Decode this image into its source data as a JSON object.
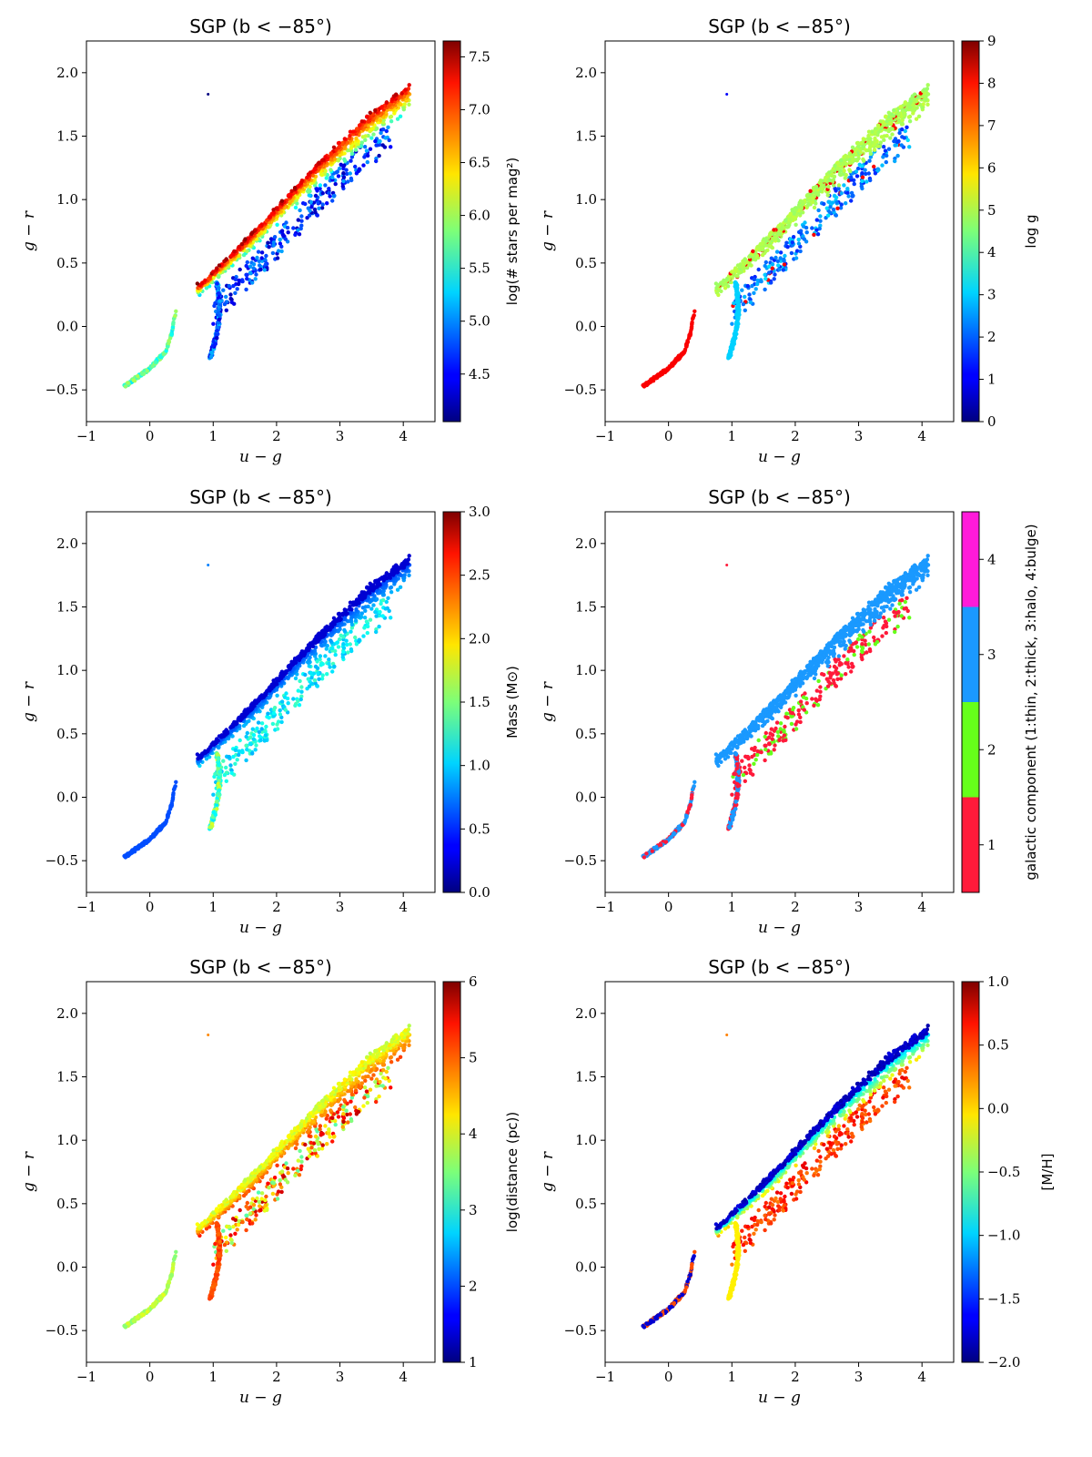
{
  "figure": {
    "panels": [
      {
        "id": "p1",
        "title": "SGP (b < −85°)",
        "xlabel": "u − g",
        "ylabel": "g − r",
        "cbar_label": "log(# stars per mag²)",
        "color_mode": "density",
        "cbar": {
          "type": "continuous",
          "range": [
            4.05,
            7.65
          ],
          "ticks": [
            "4.5",
            "5.0",
            "5.5",
            "6.0",
            "6.5",
            "7.0",
            "7.5"
          ],
          "tick_values": [
            4.5,
            5.0,
            5.5,
            6.0,
            6.5,
            7.0,
            7.5
          ]
        }
      },
      {
        "id": "p2",
        "title": "SGP (b < −85°)",
        "xlabel": "u − g",
        "ylabel": "g − r",
        "cbar_label": "log g",
        "color_mode": "logg",
        "cbar": {
          "type": "continuous",
          "range": [
            0,
            9
          ],
          "ticks": [
            "0",
            "1",
            "2",
            "3",
            "4",
            "5",
            "6",
            "7",
            "8",
            "9"
          ],
          "tick_values": [
            0,
            1,
            2,
            3,
            4,
            5,
            6,
            7,
            8,
            9
          ]
        }
      },
      {
        "id": "p3",
        "title": "SGP (b < −85°)",
        "xlabel": "u − g",
        "ylabel": "g − r",
        "cbar_label": "Mass (M⊙)",
        "color_mode": "mass",
        "cbar": {
          "type": "continuous",
          "range": [
            0,
            3
          ],
          "ticks": [
            "0.0",
            "0.5",
            "1.0",
            "1.5",
            "2.0",
            "2.5",
            "3.0"
          ],
          "tick_values": [
            0,
            0.5,
            1,
            1.5,
            2,
            2.5,
            3
          ]
        }
      },
      {
        "id": "p4",
        "title": "SGP (b < −85°)",
        "xlabel": "u − g",
        "ylabel": "g − r",
        "cbar_label": "galactic component (1:thin, 2:thick, 3:halo, 4:bulge)",
        "color_mode": "component",
        "cbar": {
          "type": "discrete",
          "range": [
            0.5,
            4.5
          ],
          "ticks": [
            "1",
            "2",
            "3",
            "4"
          ],
          "tick_values": [
            1,
            2,
            3,
            4
          ],
          "colors": [
            "#ff1a3a",
            "#66ff1a",
            "#1a99ff",
            "#ff1ad9"
          ]
        }
      },
      {
        "id": "p5",
        "title": "SGP (b < −85°)",
        "xlabel": "u − g",
        "ylabel": "g − r",
        "cbar_label": "log(distance (pc))",
        "color_mode": "distance",
        "cbar": {
          "type": "continuous",
          "range": [
            1,
            6
          ],
          "ticks": [
            "1",
            "2",
            "3",
            "4",
            "5",
            "6"
          ],
          "tick_values": [
            1,
            2,
            3,
            4,
            5,
            6
          ]
        }
      },
      {
        "id": "p6",
        "title": "SGP (b < −85°)",
        "xlabel": "u − g",
        "ylabel": "g − r",
        "cbar_label": "[M/H]",
        "color_mode": "metallicity",
        "cbar": {
          "type": "continuous",
          "range": [
            -2,
            1
          ],
          "ticks": [
            "−2.0",
            "−1.5",
            "−1.0",
            "−0.5",
            "0.0",
            "0.5",
            "1.0"
          ],
          "tick_values": [
            -2,
            -1.5,
            -1,
            -0.5,
            0,
            0.5,
            1
          ]
        }
      }
    ],
    "x_ticks": [
      "−1",
      "0",
      "1",
      "2",
      "3",
      "4"
    ],
    "x_tick_values": [
      -1,
      0,
      1,
      2,
      3,
      4
    ],
    "y_ticks": [
      "−0.5",
      "0.0",
      "0.5",
      "1.0",
      "1.5",
      "2.0"
    ],
    "y_tick_values": [
      -0.5,
      0,
      0.5,
      1,
      1.5,
      2
    ],
    "xlim": [
      -1,
      4.5
    ],
    "ylim": [
      -0.75,
      2.25
    ]
  },
  "chart_data": [
    {
      "type": "scatter",
      "panel": 1,
      "title": "SGP (b < −85°)",
      "xlabel": "u − g",
      "ylabel": "g − r",
      "xlim": [
        -1,
        4.5
      ],
      "ylim": [
        -0.75,
        2.25
      ],
      "series": [
        {
          "name": "main sequence ridge",
          "x": [
            -0.4,
            0,
            0.3,
            0.5,
            0.8,
            1.2,
            1.6,
            2.0,
            2.5,
            3.0,
            3.5,
            4.1
          ],
          "y": [
            -0.47,
            -0.32,
            -0.15,
            0.2,
            0.3,
            0.55,
            0.75,
            0.95,
            1.2,
            1.45,
            1.7,
            1.9
          ]
        },
        {
          "name": "secondary branch",
          "x": [
            0.9,
            1.0,
            1.1,
            1.0,
            1.05
          ],
          "y": [
            -0.25,
            -0.1,
            0.05,
            0.2,
            0.35
          ]
        },
        {
          "name": "outlier",
          "x": [
            0.92
          ],
          "y": [
            1.83
          ]
        }
      ],
      "colorbar": {
        "label": "log(# stars per mag²)",
        "range": [
          4.05,
          7.65
        ]
      }
    },
    {
      "type": "scatter",
      "panel": 2,
      "title": "SGP (b < −85°)",
      "colorbar": {
        "label": "log g",
        "range": [
          0,
          9
        ]
      }
    },
    {
      "type": "scatter",
      "panel": 3,
      "title": "SGP (b < −85°)",
      "colorbar": {
        "label": "Mass (M⊙)",
        "range": [
          0,
          3
        ]
      }
    },
    {
      "type": "scatter",
      "panel": 4,
      "title": "SGP (b < −85°)",
      "colorbar": {
        "label": "galactic component (1:thin, 2:thick, 3:halo, 4:bulge)",
        "categories": [
          "1",
          "2",
          "3",
          "4"
        ]
      }
    },
    {
      "type": "scatter",
      "panel": 5,
      "title": "SGP (b < −85°)",
      "colorbar": {
        "label": "log(distance (pc))",
        "range": [
          1,
          6
        ]
      }
    },
    {
      "type": "scatter",
      "panel": 6,
      "title": "SGP (b < −85°)",
      "colorbar": {
        "label": "[M/H]",
        "range": [
          -2,
          1
        ]
      }
    }
  ]
}
